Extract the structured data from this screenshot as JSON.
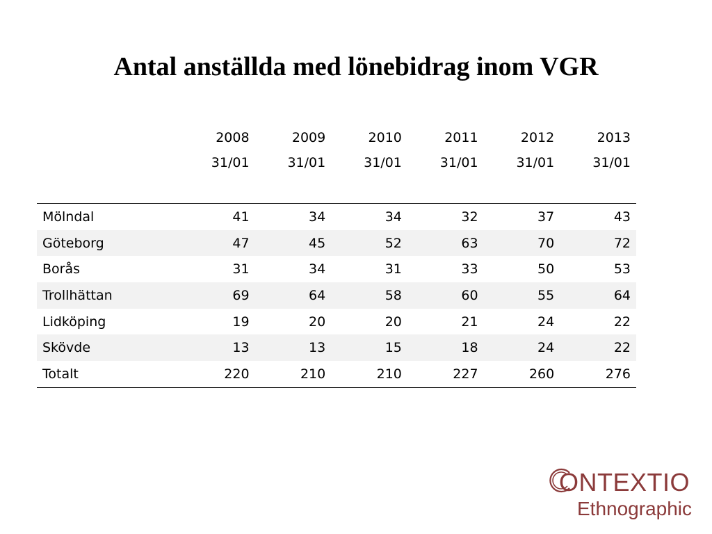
{
  "title": "Antal anställda med lönebidrag inom VGR",
  "table": {
    "columns": [
      {
        "year": "2008",
        "date": "31/01"
      },
      {
        "year": "2009",
        "date": "31/01"
      },
      {
        "year": "2010",
        "date": "31/01"
      },
      {
        "year": "2011",
        "date": "31/01"
      },
      {
        "year": "2012",
        "date": "31/01"
      },
      {
        "year": "2013",
        "date": "31/01"
      }
    ],
    "rows": [
      {
        "label": "Mölndal",
        "values": [
          "41",
          "34",
          "34",
          "32",
          "37",
          "43"
        ]
      },
      {
        "label": "Göteborg",
        "values": [
          "47",
          "45",
          "52",
          "63",
          "70",
          "72"
        ]
      },
      {
        "label": "Borås",
        "values": [
          "31",
          "34",
          "31",
          "33",
          "50",
          "53"
        ]
      },
      {
        "label": "Trollhättan",
        "values": [
          "69",
          "64",
          "58",
          "60",
          "55",
          "64"
        ]
      },
      {
        "label": "Lidköping",
        "values": [
          "19",
          "20",
          "20",
          "21",
          "24",
          "22"
        ]
      },
      {
        "label": "Skövde",
        "values": [
          "13",
          "13",
          "15",
          "18",
          "24",
          "22"
        ]
      },
      {
        "label": "Totalt",
        "values": [
          "220",
          "210",
          "210",
          "227",
          "260",
          "276"
        ]
      }
    ]
  },
  "logo": {
    "line1": "ONTEXTIO",
    "line2": "Ethnographic",
    "color": "#8b3a3a"
  }
}
